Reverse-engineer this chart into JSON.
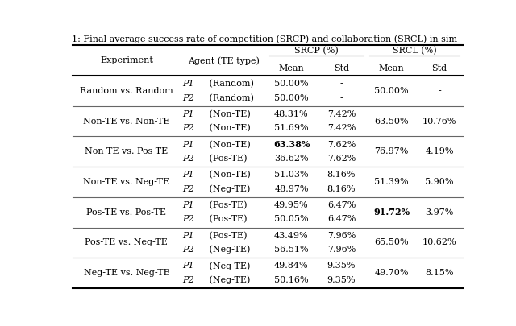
{
  "title": "1: Final average success rate of competition (SRCP) and collaboration (SRCL) in sim",
  "rows": [
    {
      "experiment": "Random vs. Random",
      "agents": [
        "P1 (Random)",
        "P2 (Random)"
      ],
      "srcp_mean": [
        "50.00%",
        "50.00%"
      ],
      "srcp_std": [
        "-",
        "-"
      ],
      "srcl_mean": "50.00%",
      "srcl_std": "-"
    },
    {
      "experiment": "Non-TE vs. Non-TE",
      "agents": [
        "P1 (Non-TE)",
        "P2 (Non-TE)"
      ],
      "srcp_mean": [
        "48.31%",
        "51.69%"
      ],
      "srcp_std": [
        "7.42%",
        "7.42%"
      ],
      "srcl_mean": "63.50%",
      "srcl_std": "10.76%"
    },
    {
      "experiment": "Non-TE vs. Pos-TE",
      "agents": [
        "P1 (Non-TE)",
        "P2 (Pos-TE)"
      ],
      "srcp_mean": [
        "63.38%",
        "36.62%"
      ],
      "srcp_std": [
        "7.62%",
        "7.62%"
      ],
      "srcl_mean": "76.97%",
      "srcl_std": "4.19%",
      "bold_srcp_mean_0": true
    },
    {
      "experiment": "Non-TE vs. Neg-TE",
      "agents": [
        "P1 (Non-TE)",
        "P2 (Neg-TE)"
      ],
      "srcp_mean": [
        "51.03%",
        "48.97%"
      ],
      "srcp_std": [
        "8.16%",
        "8.16%"
      ],
      "srcl_mean": "51.39%",
      "srcl_std": "5.90%"
    },
    {
      "experiment": "Pos-TE vs. Pos-TE",
      "agents": [
        "P1 (Pos-TE)",
        "P2 (Pos-TE)"
      ],
      "srcp_mean": [
        "49.95%",
        "50.05%"
      ],
      "srcp_std": [
        "6.47%",
        "6.47%"
      ],
      "srcl_mean": "91.72%",
      "srcl_std": "3.97%",
      "bold_srcl_mean": true
    },
    {
      "experiment": "Pos-TE vs. Neg-TE",
      "agents": [
        "P1 (Pos-TE)",
        "P2 (Neg-TE)"
      ],
      "srcp_mean": [
        "43.49%",
        "56.51%"
      ],
      "srcp_std": [
        "7.96%",
        "7.96%"
      ],
      "srcl_mean": "65.50%",
      "srcl_std": "10.62%"
    },
    {
      "experiment": "Neg-TE vs. Neg-TE",
      "agents": [
        "P1 (Neg-TE)",
        "P2 (Neg-TE)"
      ],
      "srcp_mean": [
        "49.84%",
        "50.16%"
      ],
      "srcp_std": [
        "9.35%",
        "9.35%"
      ],
      "srcl_mean": "49.70%",
      "srcl_std": "8.15%"
    }
  ],
  "background_color": "#ffffff",
  "text_color": "#000000",
  "font_size": 8.0,
  "title_font_size": 8.0
}
